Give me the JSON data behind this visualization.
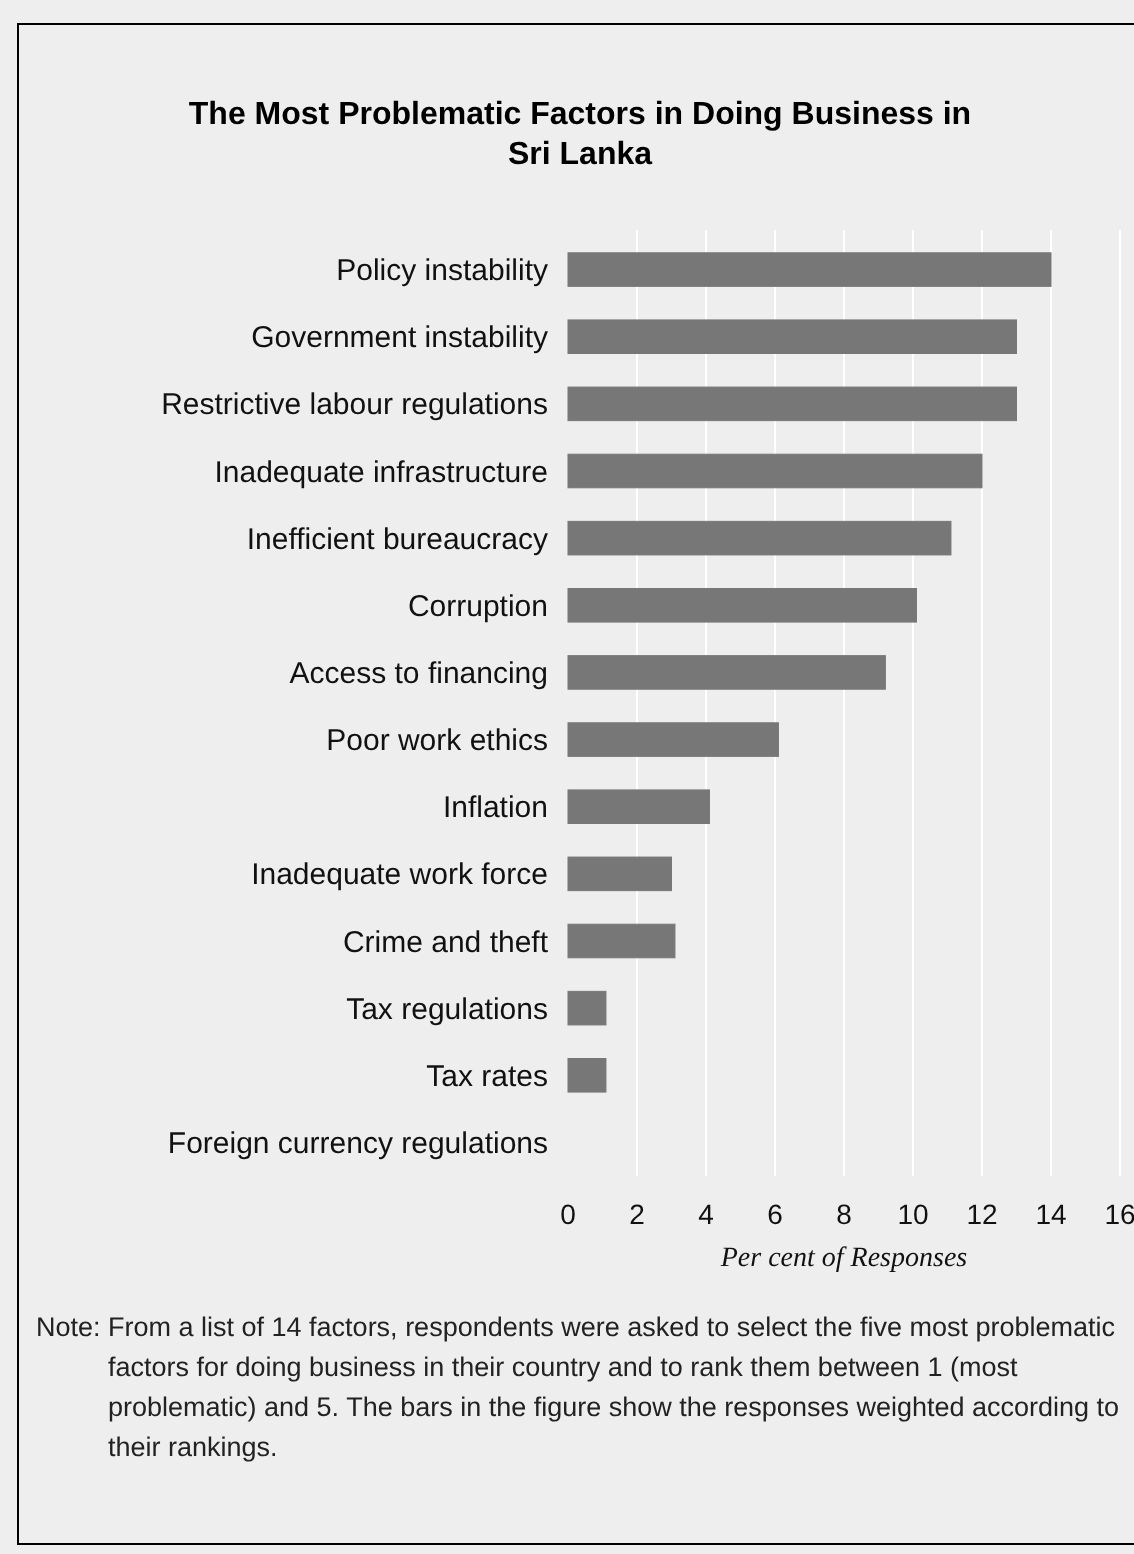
{
  "chart_data": {
    "type": "bar",
    "orientation": "horizontal",
    "title": "The Most Problematic Factors in Doing Business in Sri Lanka",
    "categories": [
      "Policy instability",
      "Government instability",
      "Restrictive labour regulations",
      "Inadequate infrastructure",
      "Inefficient bureaucracy",
      "Corruption",
      "Access to financing",
      "Poor work ethics",
      "Inflation",
      "Inadequate work force",
      "Crime and theft",
      "Tax regulations",
      "Tax rates",
      "Foreign currency regulations"
    ],
    "values": [
      14,
      13,
      13,
      12,
      11.1,
      10.1,
      9.2,
      6.1,
      4.1,
      3,
      3.1,
      1.1,
      1.1,
      0
    ],
    "color": "#777777",
    "xlim": [
      0,
      16
    ],
    "xticks": [
      0,
      2,
      4,
      6,
      8,
      10,
      12,
      14,
      16
    ],
    "grid": "x",
    "xlabel": "Per cent of Responses",
    "annotations": [
      "Note: From a list of 14 factors, respondents were asked to select the five most problematic factors for doing business in their country and to rank them between 1 (most problematic) and 5. The bars in the figure show the responses weighted according to their rankings."
    ]
  }
}
